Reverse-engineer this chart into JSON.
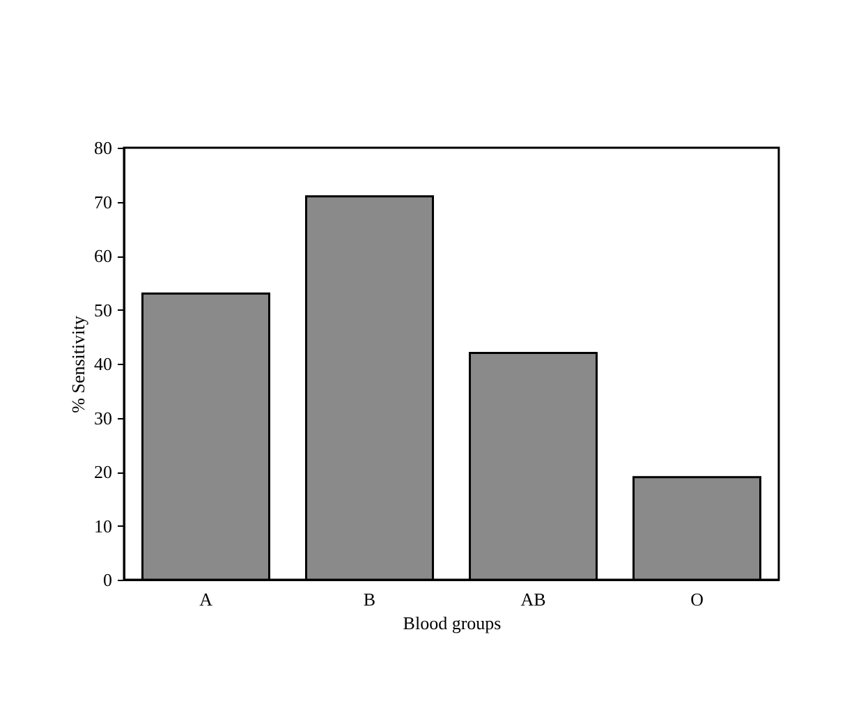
{
  "chart_data": {
    "type": "bar",
    "xlabel": "Blood groups",
    "ylabel": "% Sensitivity",
    "categories": [
      "A",
      "B",
      "AB",
      "O"
    ],
    "values": [
      53,
      71,
      42,
      19
    ],
    "color": "#8a8a8a",
    "ylim": [
      0,
      80
    ],
    "yticks": [
      0,
      10,
      20,
      30,
      40,
      50,
      60,
      70,
      80
    ],
    "grid": false
  }
}
